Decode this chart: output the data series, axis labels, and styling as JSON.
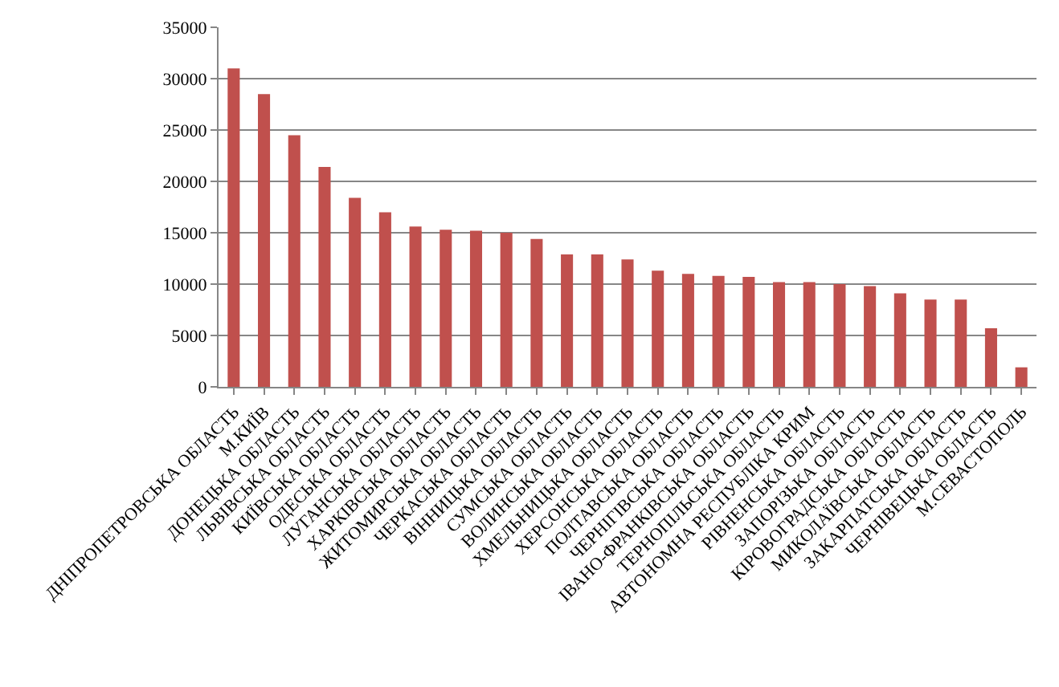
{
  "chart_data": {
    "type": "bar",
    "categories": [
      "ДНІПРОПЕТРОВСЬКА ОБЛАСТЬ",
      "М.КИЇВ",
      "ДОНЕЦЬКА ОБЛАСТЬ",
      "ЛЬВІВСЬКА ОБЛАСТЬ",
      "КИЇВСЬКА ОБЛАСТЬ",
      "ОДЕСЬКА ОБЛАСТЬ",
      "ЛУГАНСЬКА ОБЛАСТЬ",
      "ХАРКІВСЬКА ОБЛАСТЬ",
      "ЖИТОМИРСЬКА ОБЛАСТЬ",
      "ЧЕРКАСЬКА ОБЛАСТЬ",
      "ВІННИЦЬКА ОБЛАСТЬ",
      "СУМСЬКА ОБЛАСТЬ",
      "ВОЛИНСЬКА ОБЛАСТЬ",
      "ХМЕЛЬНИЦЬКА ОБЛАСТЬ",
      "ХЕРСОНСЬКА ОБЛАСТЬ",
      "ПОЛТАВСЬКА ОБЛАСТЬ",
      "ЧЕРНІГІВСЬКА ОБЛАСТЬ",
      "ІВАНО-ФРАНКІВСЬКА ОБЛАСТЬ",
      "ТЕРНОПІЛЬСЬКА ОБЛАСТЬ",
      "АВТОНОМНА РЕСПУБЛІКА КРИМ",
      "РІВНЕНСЬКА ОБЛАСТЬ",
      "ЗАПОРІЗЬКА ОБЛАСТЬ",
      "КІРОВОГРАДСЬКА ОБЛАСТЬ",
      "МИКОЛАЇВСЬКА ОБЛАСТЬ",
      "ЗАКАРПАТСЬКА ОБЛАСТЬ",
      "ЧЕРНІВЕЦЬКА ОБЛАСТЬ",
      "М.СЕВАСТОПОЛЬ"
    ],
    "values": [
      31000,
      28500,
      24500,
      21400,
      18400,
      17000,
      15600,
      15300,
      15200,
      15000,
      14400,
      12900,
      12900,
      12400,
      11300,
      11000,
      10800,
      10700,
      10200,
      10200,
      10000,
      9800,
      9100,
      8500,
      8500,
      5700,
      1900
    ],
    "color": "#c0504d",
    "ylim": [
      0,
      35000
    ],
    "yticks": [
      0,
      5000,
      10000,
      15000,
      20000,
      25000,
      30000,
      35000
    ],
    "grid": "y"
  }
}
